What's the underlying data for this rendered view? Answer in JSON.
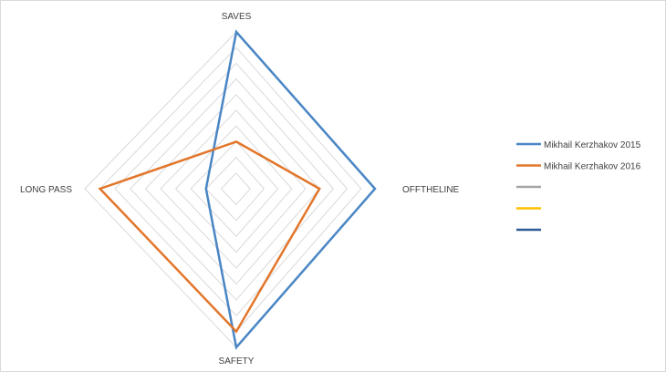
{
  "chart_data": {
    "type": "radar",
    "axes": [
      "SAVES",
      "OFFTHELINE",
      "SAFETY",
      "LONG PASS"
    ],
    "range": [
      0,
      10
    ],
    "gridlines": true,
    "legend_position": "right",
    "series": [
      {
        "name": "Mikhail Kerzhakov 2015",
        "color": "#4a86c4",
        "values": [
          10,
          10,
          10,
          2
        ]
      },
      {
        "name": "Mikhail Kerzhakov 2016",
        "color": "#e2762b",
        "values": [
          3,
          6,
          9,
          9
        ]
      },
      {
        "name": "",
        "color": "#a5a5a5",
        "values": []
      },
      {
        "name": "",
        "color": "#ffc000",
        "values": []
      },
      {
        "name": "",
        "color": "#2e5c97",
        "values": []
      }
    ]
  }
}
